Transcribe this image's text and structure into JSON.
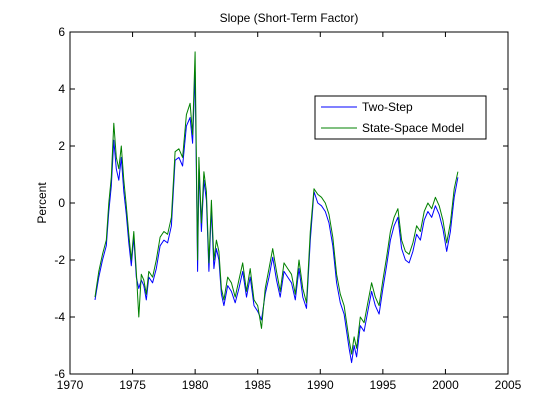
{
  "chart_data": {
    "type": "line",
    "title": "Slope (Short-Term Factor)",
    "xlabel": "",
    "ylabel": "Percent",
    "xlim": [
      1970,
      2005
    ],
    "ylim": [
      -6,
      6
    ],
    "xticks": [
      1970,
      1975,
      1980,
      1985,
      1990,
      1995,
      2000,
      2005
    ],
    "yticks": [
      -6,
      -4,
      -2,
      0,
      2,
      4,
      6
    ],
    "grid": false,
    "legend_position": "top-right",
    "series": [
      {
        "name": "Two-Step",
        "color": "#0000ff",
        "x": [
          1972.0,
          1972.3,
          1972.6,
          1972.9,
          1973.1,
          1973.3,
          1973.5,
          1973.7,
          1973.9,
          1974.1,
          1974.3,
          1974.5,
          1974.7,
          1974.9,
          1975.1,
          1975.3,
          1975.5,
          1975.7,
          1975.9,
          1976.1,
          1976.3,
          1976.6,
          1976.9,
          1977.2,
          1977.5,
          1977.8,
          1978.1,
          1978.4,
          1978.7,
          1979.0,
          1979.3,
          1979.6,
          1979.8,
          1980.0,
          1980.2,
          1980.3,
          1980.5,
          1980.7,
          1980.9,
          1981.1,
          1981.3,
          1981.5,
          1981.7,
          1981.9,
          1982.1,
          1982.3,
          1982.6,
          1982.9,
          1983.2,
          1983.5,
          1983.8,
          1984.1,
          1984.4,
          1984.7,
          1985.0,
          1985.3,
          1985.6,
          1985.9,
          1986.2,
          1986.5,
          1986.8,
          1987.1,
          1987.4,
          1987.7,
          1988.0,
          1988.3,
          1988.6,
          1988.9,
          1989.2,
          1989.5,
          1989.8,
          1990.1,
          1990.4,
          1990.7,
          1991.0,
          1991.3,
          1991.6,
          1991.9,
          1992.1,
          1992.3,
          1992.5,
          1992.7,
          1992.9,
          1993.2,
          1993.5,
          1993.8,
          1994.1,
          1994.4,
          1994.7,
          1995.0,
          1995.3,
          1995.6,
          1995.9,
          1996.2,
          1996.5,
          1996.8,
          1997.1,
          1997.4,
          1997.7,
          1998.0,
          1998.3,
          1998.6,
          1998.9,
          1999.2,
          1999.5,
          1999.8,
          2000.1,
          2000.4,
          2000.7,
          2001.0
        ],
        "y": [
          -3.4,
          -2.6,
          -2.0,
          -1.5,
          -0.3,
          0.6,
          2.2,
          1.2,
          0.8,
          1.6,
          0.4,
          -0.4,
          -1.4,
          -2.2,
          -1.2,
          -2.6,
          -3.0,
          -2.7,
          -2.9,
          -3.4,
          -2.6,
          -2.8,
          -2.3,
          -1.5,
          -1.3,
          -1.4,
          -0.8,
          1.5,
          1.6,
          1.3,
          2.7,
          3.0,
          2.1,
          4.6,
          -2.4,
          1.2,
          -1.0,
          0.8,
          0.1,
          -2.4,
          -0.2,
          -2.3,
          -1.6,
          -2.0,
          -3.2,
          -3.6,
          -2.9,
          -3.1,
          -3.5,
          -3.0,
          -2.4,
          -3.3,
          -2.6,
          -3.6,
          -3.8,
          -4.1,
          -3.2,
          -2.6,
          -1.9,
          -2.7,
          -3.3,
          -2.4,
          -2.6,
          -2.8,
          -3.4,
          -2.3,
          -3.3,
          -3.7,
          -1.3,
          0.4,
          0.0,
          -0.1,
          -0.3,
          -0.7,
          -1.5,
          -2.8,
          -3.5,
          -3.9,
          -4.5,
          -5.1,
          -5.6,
          -5.0,
          -5.4,
          -4.3,
          -4.5,
          -3.8,
          -3.1,
          -3.6,
          -3.9,
          -3.0,
          -2.2,
          -1.3,
          -0.8,
          -0.5,
          -1.6,
          -2.0,
          -2.1,
          -1.7,
          -1.1,
          -1.3,
          -0.6,
          -0.3,
          -0.5,
          -0.1,
          -0.4,
          -0.9,
          -1.7,
          -1.0,
          0.2,
          0.9
        ]
      },
      {
        "name": "State-Space Model",
        "color": "#008000",
        "x": [
          1972.0,
          1972.3,
          1972.6,
          1972.9,
          1973.1,
          1973.3,
          1973.5,
          1973.7,
          1973.9,
          1974.1,
          1974.3,
          1974.5,
          1974.7,
          1974.9,
          1975.1,
          1975.3,
          1975.5,
          1975.7,
          1975.9,
          1976.1,
          1976.3,
          1976.6,
          1976.9,
          1977.2,
          1977.5,
          1977.8,
          1978.1,
          1978.4,
          1978.7,
          1979.0,
          1979.3,
          1979.6,
          1979.8,
          1980.0,
          1980.2,
          1980.3,
          1980.5,
          1980.7,
          1980.9,
          1981.1,
          1981.3,
          1981.5,
          1981.7,
          1981.9,
          1982.1,
          1982.3,
          1982.6,
          1982.9,
          1983.2,
          1983.5,
          1983.8,
          1984.1,
          1984.4,
          1984.7,
          1985.0,
          1985.3,
          1985.6,
          1985.9,
          1986.2,
          1986.5,
          1986.8,
          1987.1,
          1987.4,
          1987.7,
          1988.0,
          1988.3,
          1988.6,
          1988.9,
          1989.2,
          1989.5,
          1989.8,
          1990.1,
          1990.4,
          1990.7,
          1991.0,
          1991.3,
          1991.6,
          1991.9,
          1992.1,
          1992.3,
          1992.5,
          1992.7,
          1992.9,
          1993.2,
          1993.5,
          1993.8,
          1994.1,
          1994.4,
          1994.7,
          1995.0,
          1995.3,
          1995.6,
          1995.9,
          1996.2,
          1996.5,
          1996.8,
          1997.1,
          1997.4,
          1997.7,
          1998.0,
          1998.3,
          1998.6,
          1998.9,
          1999.2,
          1999.5,
          1999.8,
          2000.1,
          2000.4,
          2000.7,
          2001.0
        ],
        "y": [
          -3.3,
          -2.4,
          -1.8,
          -1.3,
          0.0,
          0.9,
          2.8,
          1.6,
          1.2,
          2.0,
          0.8,
          -0.1,
          -1.1,
          -2.0,
          -1.0,
          -2.4,
          -4.0,
          -2.5,
          -2.7,
          -3.2,
          -2.4,
          -2.6,
          -2.0,
          -1.2,
          -1.0,
          -1.1,
          -0.5,
          1.8,
          1.9,
          1.6,
          3.1,
          3.5,
          2.4,
          5.3,
          -2.0,
          1.6,
          -0.7,
          1.1,
          0.4,
          -2.1,
          0.1,
          -2.0,
          -1.3,
          -1.7,
          -3.0,
          -3.4,
          -2.6,
          -2.8,
          -3.3,
          -2.7,
          -2.1,
          -3.1,
          -2.3,
          -3.4,
          -3.6,
          -4.4,
          -3.0,
          -2.3,
          -1.6,
          -2.4,
          -3.1,
          -2.1,
          -2.3,
          -2.5,
          -3.2,
          -2.0,
          -3.0,
          -3.5,
          -1.0,
          0.5,
          0.3,
          0.2,
          0.0,
          -0.4,
          -1.2,
          -2.5,
          -3.2,
          -3.6,
          -4.2,
          -4.8,
          -5.3,
          -4.7,
          -5.1,
          -4.0,
          -4.2,
          -3.5,
          -2.8,
          -3.3,
          -3.6,
          -2.7,
          -1.9,
          -1.0,
          -0.5,
          -0.2,
          -1.3,
          -1.7,
          -1.8,
          -1.4,
          -0.8,
          -1.0,
          -0.3,
          0.0,
          -0.2,
          0.2,
          -0.1,
          -0.6,
          -1.4,
          -0.7,
          0.5,
          1.1
        ]
      }
    ]
  }
}
